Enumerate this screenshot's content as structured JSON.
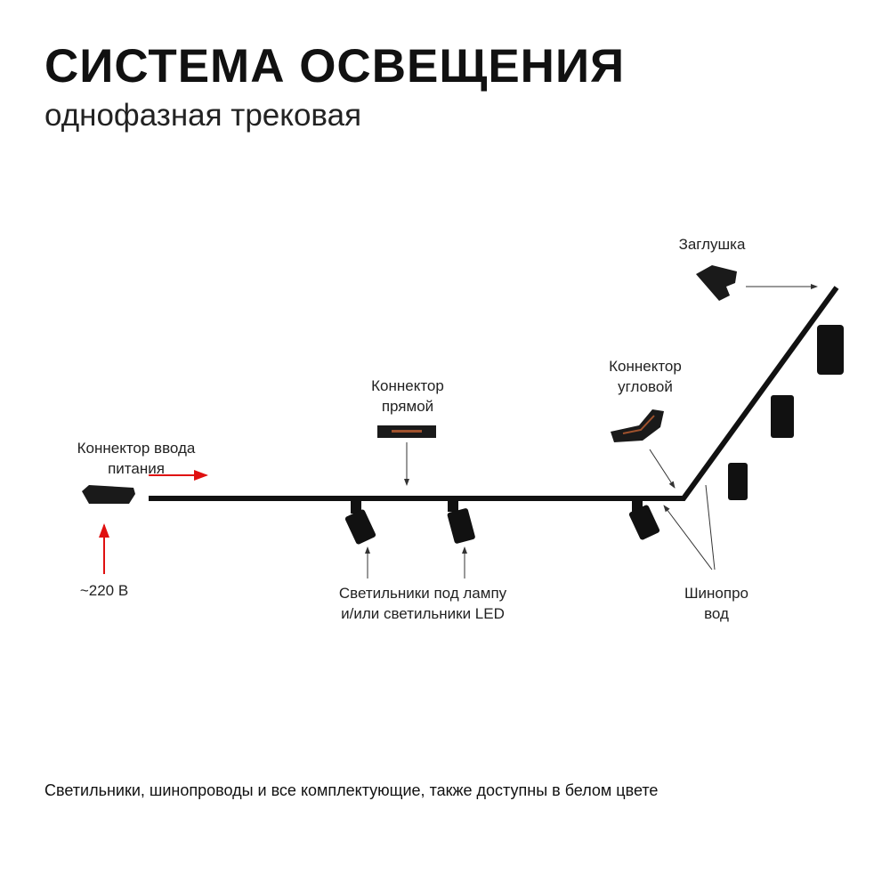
{
  "header": {
    "title": "СИСТЕМА ОСВЕЩЕНИЯ",
    "subtitle": "однофазная трековая"
  },
  "labels": {
    "power_connector": [
      "Коннектор ввода",
      "питания"
    ],
    "voltage": "~220 В",
    "straight_connector": [
      "Коннектор",
      "прямой"
    ],
    "corner_connector": [
      "Коннектор",
      "угловой"
    ],
    "end_cap": "Заглушка",
    "lamps": [
      "Светильники под лампу",
      "и/или светильники LED"
    ],
    "busbar": [
      "Шинопро",
      "вод"
    ]
  },
  "footer": "Светильники, шинопроводы и все комплектующие, также доступны в белом цвете",
  "colors": {
    "track": "#111111",
    "power_arrow": "#e01010",
    "pointer": "#333333"
  }
}
